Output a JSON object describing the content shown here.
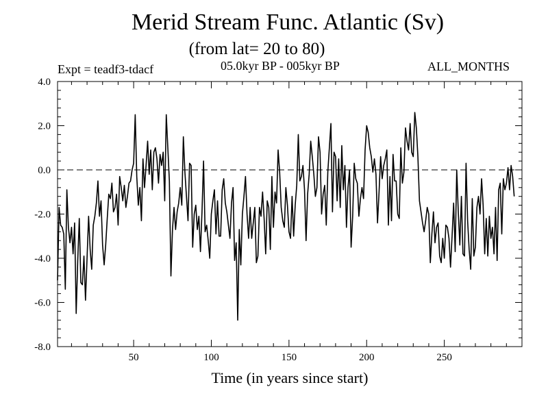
{
  "chart_data": {
    "type": "line",
    "title": "Merid Stream Func. Atlantic (Sv)",
    "subtitle": "(from lat= 20 to 80)",
    "left_label": "Expt = teadf3-tdacf",
    "center_label": "05.0kyr BP - 005kyr BP",
    "right_label": "ALL_MONTHS",
    "xlabel": "Time (in years since start)",
    "ylabel": "",
    "xlim": [
      1,
      300
    ],
    "ylim": [
      -8.0,
      4.0
    ],
    "x_ticks": [
      50,
      100,
      150,
      200,
      250
    ],
    "x_tick_labels": [
      "50",
      "100",
      "150",
      "200",
      "250"
    ],
    "y_ticks": [
      -8.0,
      -6.0,
      -4.0,
      -2.0,
      0.0,
      2.0,
      4.0
    ],
    "y_tick_labels": [
      "-8.0",
      "-6.0",
      "-4.0",
      "-2.0",
      "0.0",
      "2.0",
      "4.0"
    ],
    "reference_line": 0.0,
    "x_start": 1,
    "x_step": 1,
    "series": [
      {
        "name": "Merid Stream Func. Atlantic",
        "values": [
          -5.0,
          -1.7,
          -2.5,
          -2.6,
          -2.9,
          -5.4,
          -0.9,
          -2.6,
          -3.3,
          -2.6,
          -3.8,
          -2.4,
          -6.5,
          -4.1,
          -2.2,
          -5.1,
          -5.2,
          -3.9,
          -5.9,
          -4.0,
          -2.1,
          -3.6,
          -4.5,
          -2.5,
          -2.1,
          -1.5,
          -0.5,
          -2.1,
          -1.4,
          -3.4,
          -4.3,
          -3.4,
          -2.2,
          -1.1,
          -1.3,
          -0.6,
          -1.9,
          -1.7,
          -1.1,
          -2.5,
          -0.3,
          -0.8,
          -1.4,
          -0.7,
          -1.7,
          -1.2,
          -0.6,
          -0.5,
          0.0,
          0.3,
          2.5,
          -0.3,
          -1.6,
          -0.8,
          -2.3,
          0.5,
          -0.8,
          0.2,
          1.3,
          -0.2,
          0.9,
          -0.9,
          0.8,
          1.0,
          0.5,
          -0.6,
          0.7,
          0.2,
          0.8,
          -1.4,
          2.5,
          1.0,
          -0.5,
          -4.8,
          -2.7,
          -1.7,
          -2.7,
          -1.9,
          -1.5,
          -0.8,
          -1.6,
          1.5,
          -0.1,
          -1.2,
          -2.3,
          0.3,
          0.2,
          -3.5,
          -2.0,
          -1.6,
          -2.7,
          -2.1,
          -3.7,
          -1.9,
          0.4,
          -2.8,
          -2.5,
          -3.2,
          -4.0,
          -2.0,
          -1.4,
          -0.9,
          -2.9,
          -1.4,
          -3.0,
          -3.0,
          -0.9,
          -0.4,
          -1.5,
          -1.9,
          -2.5,
          -3.1,
          -1.5,
          -0.8,
          -4.1,
          -3.3,
          -6.8,
          -2.7,
          -4.3,
          -2.0,
          -1.2,
          -0.3,
          -2.0,
          -3.1,
          -1.7,
          -3.1,
          -2.4,
          -1.7,
          -4.2,
          -3.9,
          -1.7,
          -2.1,
          -1.0,
          -2.2,
          -3.8,
          -1.4,
          -1.7,
          -3.6,
          -0.3,
          -2.6,
          -1.0,
          -1.5,
          0.9,
          -0.1,
          -1.7,
          -2.3,
          -2.6,
          -0.8,
          -1.6,
          -2.8,
          -3.1,
          -1.2,
          -3.0,
          -1.6,
          -0.7,
          1.6,
          -0.5,
          -0.3,
          0.2,
          -0.9,
          -3.2,
          -1.1,
          -0.2,
          1.3,
          0.6,
          -0.2,
          -1.2,
          -0.8,
          1.5,
          0.8,
          -2.0,
          -1.1,
          -0.7,
          -2.5,
          -0.1,
          1.0,
          2.1,
          -1.9,
          0.8,
          0.6,
          -1.4,
          0.5,
          -1.7,
          1.1,
          -0.9,
          0.2,
          -2.6,
          -0.8,
          0.0,
          -3.5,
          -2.1,
          0.3,
          -0.4,
          -0.6,
          -2.1,
          -1.3,
          -0.8,
          -1.3,
          0.9,
          2.0,
          1.7,
          1.0,
          0.6,
          -0.1,
          0.5,
          -0.2,
          -2.4,
          -1.0,
          0.6,
          -0.4,
          0.2,
          0.5,
          0.9,
          -2.5,
          -0.3,
          -2.3,
          0.7,
          -0.5,
          -0.5,
          -2.0,
          -2.2,
          1.0,
          -0.6,
          -0.1,
          1.9,
          1.3,
          0.9,
          2.1,
          0.8,
          0.6,
          2.6,
          1.9,
          0.6,
          -1.4,
          -1.9,
          -2.4,
          -2.8,
          -2.3,
          -1.7,
          -2.0,
          -4.2,
          -2.9,
          -1.9,
          -3.3,
          -2.6,
          -2.4,
          -3.9,
          -4.2,
          -3.1,
          -4.0,
          -2.5,
          -2.6,
          -3.1,
          -4.4,
          -3.0,
          -1.5,
          -3.7,
          0.0,
          -1.9,
          -3.4,
          -1.2,
          -3.8,
          -3.9,
          0.3,
          -2.3,
          -3.6,
          -4.5,
          -1.3,
          -3.9,
          -3.5,
          -1.7,
          -1.2,
          -2.0,
          -0.4,
          -1.6,
          -3.8,
          -2.2,
          -3.9,
          -2.1,
          -3.1,
          -2.6,
          -3.8,
          -1.7,
          -4.1,
          -0.9,
          -0.6,
          -2.9,
          -0.4,
          -0.9,
          -0.6,
          0.1,
          -0.9,
          0.2,
          -0.3,
          -1.2
        ]
      }
    ]
  }
}
